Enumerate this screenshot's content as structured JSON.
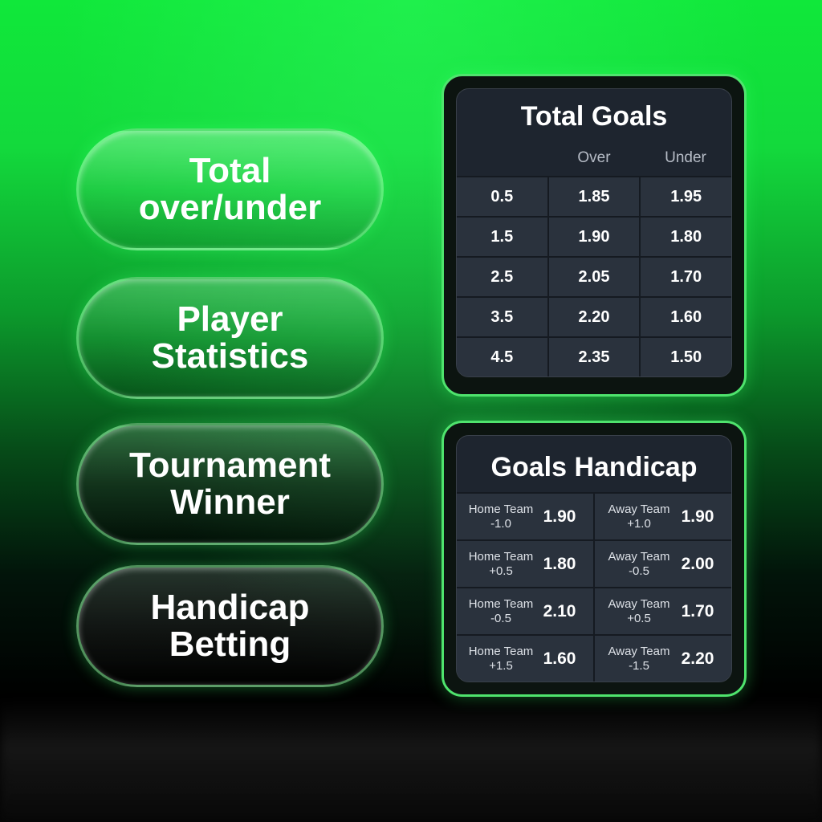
{
  "markets": [
    {
      "line1": "Total",
      "line2": "over/under"
    },
    {
      "line1": "Player",
      "line2": "Statistics"
    },
    {
      "line1": "Tournament",
      "line2": "Winner"
    },
    {
      "line1": "Handicap",
      "line2": "Betting"
    }
  ],
  "total_goals": {
    "title": "Total Goals",
    "headers": [
      "",
      "Over",
      "Under"
    ],
    "rows": [
      [
        "0.5",
        "1.85",
        "1.95"
      ],
      [
        "1.5",
        "1.90",
        "1.80"
      ],
      [
        "2.5",
        "2.05",
        "1.70"
      ],
      [
        "3.5",
        "2.20",
        "1.60"
      ],
      [
        "4.5",
        "2.35",
        "1.50"
      ]
    ]
  },
  "goals_handicap": {
    "title": "Goals Handicap",
    "rows": [
      [
        {
          "team": "Home Team",
          "line": "-1.0",
          "odds": "1.90"
        },
        {
          "team": "Away Team",
          "line": "+1.0",
          "odds": "1.90"
        }
      ],
      [
        {
          "team": "Home Team",
          "line": "+0.5",
          "odds": "1.80"
        },
        {
          "team": "Away Team",
          "line": "-0.5",
          "odds": "2.00"
        }
      ],
      [
        {
          "team": "Home Team",
          "line": "-0.5",
          "odds": "2.10"
        },
        {
          "team": "Away Team",
          "line": "+0.5",
          "odds": "1.70"
        }
      ],
      [
        {
          "team": "Home Team",
          "line": "+1.5",
          "odds": "1.60"
        },
        {
          "team": "Away Team",
          "line": "-1.5",
          "odds": "2.20"
        }
      ]
    ]
  },
  "colors": {
    "accent": "#4fe36d",
    "panel": "#1e252f",
    "cell": "#2a323d"
  }
}
